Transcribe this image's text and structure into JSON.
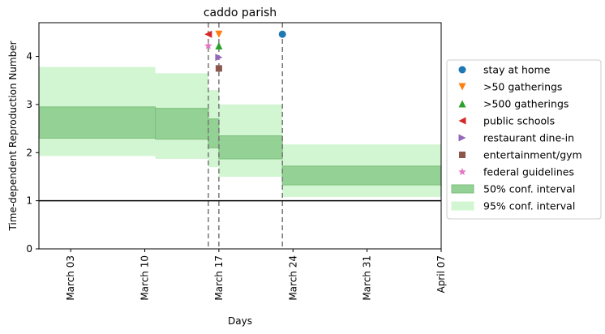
{
  "chart_data": {
    "type": "area",
    "title": "caddo parish",
    "xlabel": "Days",
    "ylabel": "Time-dependent Reproduction Number",
    "x_ticks": [
      {
        "date": "2020-03-03",
        "label": "March 03"
      },
      {
        "date": "2020-03-10",
        "label": "March 10"
      },
      {
        "date": "2020-03-17",
        "label": "March 17"
      },
      {
        "date": "2020-03-24",
        "label": "March 24"
      },
      {
        "date": "2020-03-31",
        "label": "March 31"
      },
      {
        "date": "2020-04-07",
        "label": "April 07"
      }
    ],
    "xlim": [
      "2020-02-29",
      "2020-04-07"
    ],
    "y_ticks": [
      0,
      1,
      2,
      3,
      4
    ],
    "ylim": [
      0,
      4.7
    ],
    "grid": false,
    "legend_position": "right",
    "reference_line_y": 1,
    "segments": [
      {
        "start": "2020-02-29",
        "end": "2020-03-11",
        "ci50": [
          2.3,
          2.95
        ],
        "ci95": [
          1.93,
          3.78
        ]
      },
      {
        "start": "2020-03-11",
        "end": "2020-03-16",
        "ci50": [
          2.28,
          2.92
        ],
        "ci95": [
          1.87,
          3.65
        ]
      },
      {
        "start": "2020-03-16",
        "end": "2020-03-17",
        "ci50": [
          2.1,
          2.7
        ],
        "ci95": [
          1.7,
          3.3
        ]
      },
      {
        "start": "2020-03-17",
        "end": "2020-03-23",
        "ci50": [
          1.87,
          2.35
        ],
        "ci95": [
          1.5,
          3.0
        ]
      },
      {
        "start": "2020-03-23",
        "end": "2020-04-07",
        "ci50": [
          1.33,
          1.72
        ],
        "ci95": [
          1.08,
          2.17
        ]
      }
    ],
    "interventions": [
      {
        "label": "stay at home",
        "date": "2020-03-23",
        "y": 4.46,
        "marker": "circle",
        "color": "#1f77b4"
      },
      {
        "label": ">50 gatherings",
        "date": "2020-03-17",
        "y": 4.46,
        "marker": "triangle-down",
        "color": "#ff7f0e"
      },
      {
        "label": ">500 gatherings",
        "date": "2020-03-17",
        "y": 4.22,
        "marker": "triangle-up",
        "color": "#2ca02c"
      },
      {
        "label": "public schools",
        "date": "2020-03-16",
        "y": 4.46,
        "marker": "triangle-left",
        "color": "#d62728"
      },
      {
        "label": "restaurant dine-in",
        "date": "2020-03-17",
        "y": 3.98,
        "marker": "triangle-right",
        "color": "#9467bd"
      },
      {
        "label": "entertainment/gym",
        "date": "2020-03-17",
        "y": 3.75,
        "marker": "square",
        "color": "#8c564b"
      },
      {
        "label": "federal guidelines",
        "date": "2020-03-16",
        "y": 4.22,
        "marker": "star",
        "color": "#e377c2"
      }
    ],
    "vlines": [
      "2020-03-16",
      "2020-03-17",
      "2020-03-23"
    ],
    "legend": [
      {
        "label": "stay at home",
        "marker": "circle",
        "color": "#1f77b4"
      },
      {
        "label": ">50 gatherings",
        "marker": "triangle-down",
        "color": "#ff7f0e"
      },
      {
        "label": ">500 gatherings",
        "marker": "triangle-up",
        "color": "#2ca02c"
      },
      {
        "label": "public schools",
        "marker": "triangle-left",
        "color": "#d62728"
      },
      {
        "label": "restaurant dine-in",
        "marker": "triangle-right",
        "color": "#9467bd"
      },
      {
        "label": "entertainment/gym",
        "marker": "square",
        "color": "#8c564b"
      },
      {
        "label": "federal guidelines",
        "marker": "star",
        "color": "#e377c2"
      },
      {
        "label": "50% conf. interval",
        "marker": "patch",
        "color": "#94d194"
      },
      {
        "label": "95% conf. interval",
        "marker": "patch",
        "color": "#d2f5d2"
      }
    ],
    "colors": {
      "ci50_fill": "#94d194",
      "ci50_edge": "#7cbf7c",
      "ci95_fill": "#d2f5d2",
      "vline": "#777777",
      "reference_line": "#000000"
    }
  }
}
